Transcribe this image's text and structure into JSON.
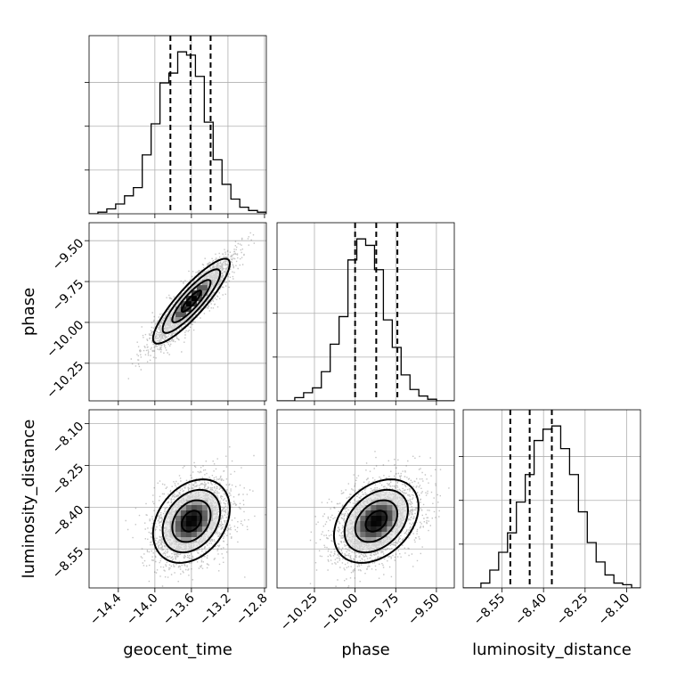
{
  "chart_data": {
    "type": "corner",
    "parameters": [
      "geocent_time",
      "phase",
      "luminosity_distance"
    ],
    "axes": {
      "geocent_time": {
        "label": "geocent_time",
        "range": [
          -14.72,
          -12.78
        ],
        "ticks": [
          -14.4,
          -14.0,
          -13.6,
          -13.2,
          -12.8
        ],
        "tick_labels": [
          "−14.4",
          "−14.0",
          "−13.6",
          "−13.2",
          "−12.8"
        ],
        "quantiles": [
          -13.83,
          -13.61,
          -13.39
        ]
      },
      "phase": {
        "label": "phase",
        "range": [
          -10.48,
          -9.39
        ],
        "ticks": [
          -10.25,
          -10.0,
          -9.75,
          -9.5
        ],
        "tick_labels": [
          "−10.25",
          "−10.00",
          "−9.75",
          "−9.50"
        ],
        "quantiles": [
          -10.0,
          -9.87,
          -9.74
        ]
      },
      "luminosity_distance": {
        "label": "luminosity_distance",
        "range": [
          -8.69,
          -8.05
        ],
        "ticks": [
          -8.55,
          -8.4,
          -8.25,
          -8.1
        ],
        "tick_labels": [
          "−8.55",
          "−8.40",
          "−8.25",
          "−8.10"
        ],
        "quantiles": [
          -8.52,
          -8.45,
          -8.37
        ]
      }
    },
    "histograms": {
      "geocent_time": [
        0.0,
        0.01,
        0.03,
        0.06,
        0.11,
        0.16,
        0.36,
        0.55,
        0.8,
        0.86,
        0.99,
        0.97,
        0.84,
        0.56,
        0.33,
        0.18,
        0.09,
        0.04,
        0.02,
        0.01
      ],
      "phase": [
        0.0,
        0.0,
        0.02,
        0.05,
        0.08,
        0.18,
        0.35,
        0.52,
        0.87,
        1.0,
        0.96,
        0.81,
        0.5,
        0.33,
        0.16,
        0.07,
        0.03,
        0.01,
        0.0,
        0.0
      ],
      "luminosity_distance": [
        0.0,
        0.0,
        0.03,
        0.11,
        0.22,
        0.34,
        0.53,
        0.7,
        0.91,
        0.98,
        1.0,
        0.86,
        0.7,
        0.47,
        0.28,
        0.16,
        0.08,
        0.03,
        0.02,
        0.0
      ]
    },
    "posterior": {
      "means": {
        "geocent_time": -13.6,
        "phase": -9.87,
        "luminosity_distance": -8.45
      },
      "sigmas": {
        "geocent_time": 0.21,
        "phase": 0.13,
        "luminosity_distance": 0.075
      },
      "correlations": {
        "geocent_time|phase": 0.88,
        "geocent_time|luminosity_distance": 0.3,
        "phase|luminosity_distance": 0.35
      }
    },
    "grid": true,
    "colors": {
      "line": "#000000",
      "grid": "#b0b0b0",
      "samples": "#555555"
    }
  }
}
